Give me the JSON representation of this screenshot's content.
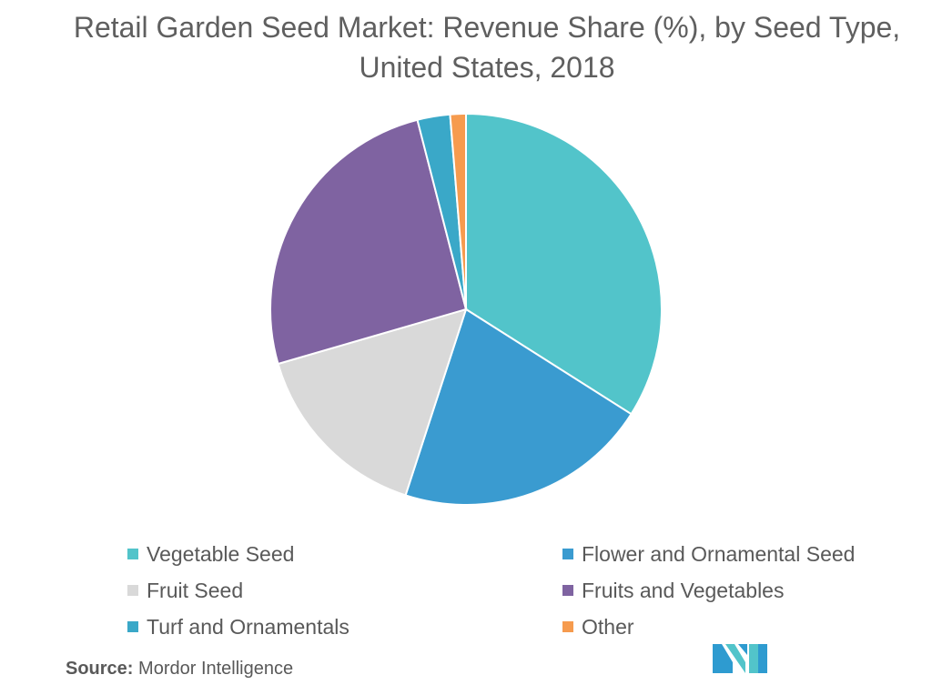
{
  "title": "Retail Garden Seed Market: Revenue Share (%), by Seed Type, United States, 2018",
  "source_label": "Source:",
  "source_text": "Mordor Intelligence",
  "logo_icon": "mordor-intelligence-logo",
  "chart_data": {
    "type": "pie",
    "title": "Retail Garden Seed Market: Revenue Share (%), by Seed Type, United States, 2018",
    "legend_position": "bottom",
    "slices": [
      {
        "label": "Vegetable Seed",
        "value": 34,
        "color": "#52C4CA"
      },
      {
        "label": "Flower and Ornamental Seed",
        "value": 21,
        "color": "#3A9BD0"
      },
      {
        "label": "Fruit Seed",
        "value": 15.5,
        "color": "#D9D9D9"
      },
      {
        "label": "Fruits and Vegetables",
        "value": 25.5,
        "color": "#7F63A1"
      },
      {
        "label": "Turf and Ornamentals",
        "value": 2.7,
        "color": "#3AA8C8"
      },
      {
        "label": "Other",
        "value": 1.3,
        "color": "#F69B4E"
      }
    ]
  }
}
